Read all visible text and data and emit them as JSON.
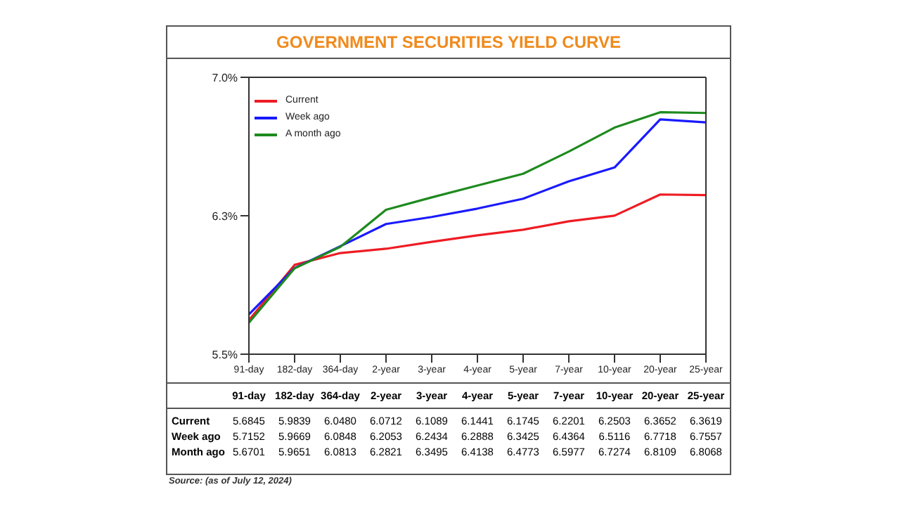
{
  "chart_data": {
    "type": "line",
    "title": "GOVERNMENT SECURITIES YIELD CURVE",
    "categories": [
      "91-day",
      "182-day",
      "364-day",
      "2-year",
      "3-year",
      "4-year",
      "5-year",
      "7-year",
      "10-year",
      "20-year",
      "25-year"
    ],
    "series": [
      {
        "name": "Current",
        "color": "#ee1c24",
        "values": [
          5.6845,
          5.9839,
          6.048,
          6.0712,
          6.1089,
          6.1441,
          6.1745,
          6.2201,
          6.2503,
          6.3652,
          6.3619
        ],
        "value_labels": [
          "5.6845",
          "5.9839",
          "6.0480",
          "6.0712",
          "6.1089",
          "6.1441",
          "6.1745",
          "6.2201",
          "6.2503",
          "6.3652",
          "6.3619"
        ]
      },
      {
        "name": "Week ago",
        "color": "#1a1aff",
        "values": [
          5.7152,
          5.9669,
          6.0848,
          6.2053,
          6.2434,
          6.2888,
          6.3425,
          6.4364,
          6.5116,
          6.7718,
          6.7557
        ],
        "value_labels": [
          "5.7152",
          "5.9669",
          "6.0848",
          "6.2053",
          "6.2434",
          "6.2888",
          "6.3425",
          "6.4364",
          "6.5116",
          "6.7718",
          "6.7557"
        ]
      },
      {
        "name": "A month ago",
        "color": "#1e8a1e",
        "values": [
          5.6701,
          5.9651,
          6.0813,
          6.2821,
          6.3495,
          6.4138,
          6.4773,
          6.5977,
          6.7274,
          6.8109,
          6.8068
        ],
        "value_labels": [
          "5.6701",
          "5.9651",
          "6.0813",
          "6.2821",
          "6.3495",
          "6.4138",
          "6.4773",
          "6.5977",
          "6.7274",
          "6.8109",
          "6.8068"
        ]
      }
    ],
    "ylim": [
      5.5,
      7.0
    ],
    "yticks": [
      {
        "value": 5.5,
        "label": "5.5%"
      },
      {
        "value": 6.25,
        "label": "6.3%"
      },
      {
        "value": 7.0,
        "label": "7.0%"
      }
    ],
    "legend": "top left",
    "marker": "none",
    "line_style": "solid",
    "data_labels": true,
    "annotations": [
      "Month ago",
      "Source: (as of July 12, 2024)"
    ]
  }
}
